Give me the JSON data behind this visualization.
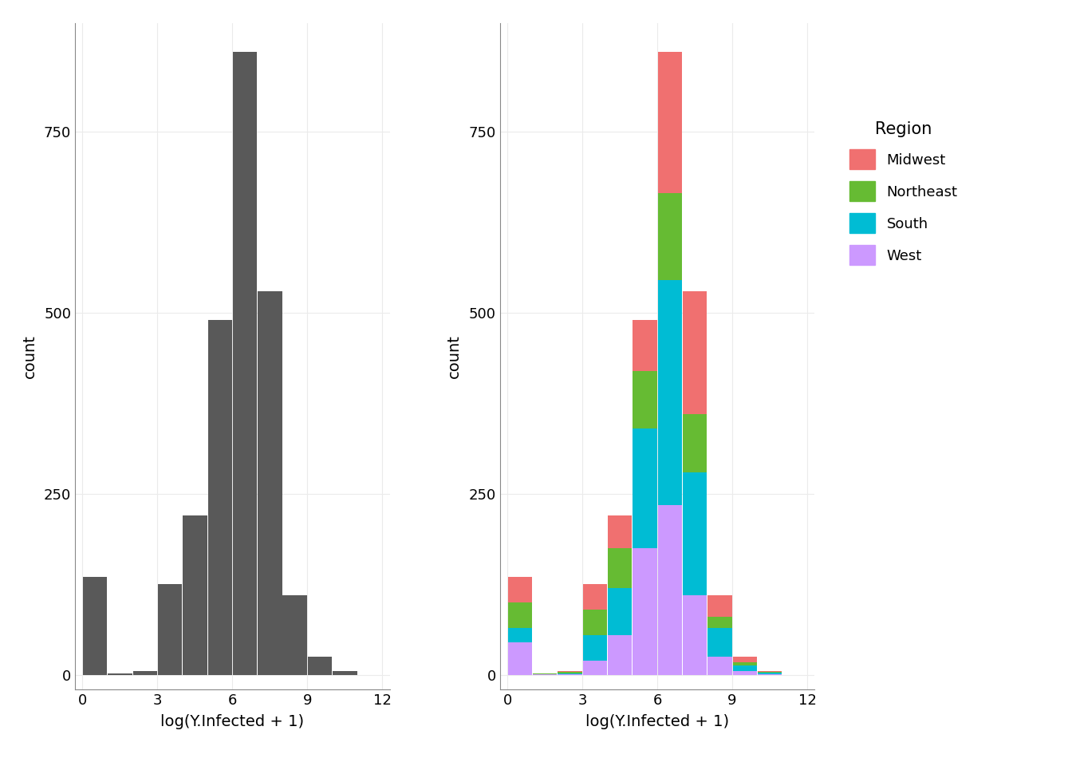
{
  "xlabel": "log(Y.Infected + 1)",
  "ylabel": "count",
  "xlim": [
    -0.3,
    12.3
  ],
  "ylim": [
    -20,
    900
  ],
  "yticks": [
    0,
    250,
    500,
    750
  ],
  "xticks": [
    0,
    3,
    6,
    9,
    12
  ],
  "gray_color": "#595959",
  "background_color": "#FFFFFF",
  "grid_color": "#EBEBEB",
  "regions": [
    "West",
    "South",
    "Northeast",
    "Midwest"
  ],
  "region_colors": [
    "#CC99FF",
    "#00BCD4",
    "#66BB33",
    "#F07070"
  ],
  "bin_edges": [
    0,
    1,
    2,
    3,
    4,
    5,
    6,
    7,
    8,
    9,
    10,
    11,
    12
  ],
  "total_counts": [
    135,
    2,
    5,
    125,
    220,
    490,
    860,
    530,
    110,
    25,
    5,
    0
  ],
  "region_counts": {
    "West": [
      45,
      1,
      1,
      20,
      55,
      175,
      235,
      110,
      25,
      5,
      1,
      0
    ],
    "South": [
      20,
      0,
      1,
      35,
      65,
      165,
      310,
      170,
      40,
      8,
      2,
      0
    ],
    "Northeast": [
      35,
      1,
      2,
      35,
      55,
      80,
      120,
      80,
      15,
      5,
      1,
      0
    ],
    "Midwest": [
      35,
      0,
      1,
      35,
      45,
      70,
      195,
      170,
      30,
      7,
      1,
      0
    ]
  },
  "legend_title": "Region",
  "legend_regions": [
    "Midwest",
    "Northeast",
    "South",
    "West"
  ],
  "legend_colors": [
    "#F07070",
    "#66BB33",
    "#00BCD4",
    "#CC99FF"
  ]
}
